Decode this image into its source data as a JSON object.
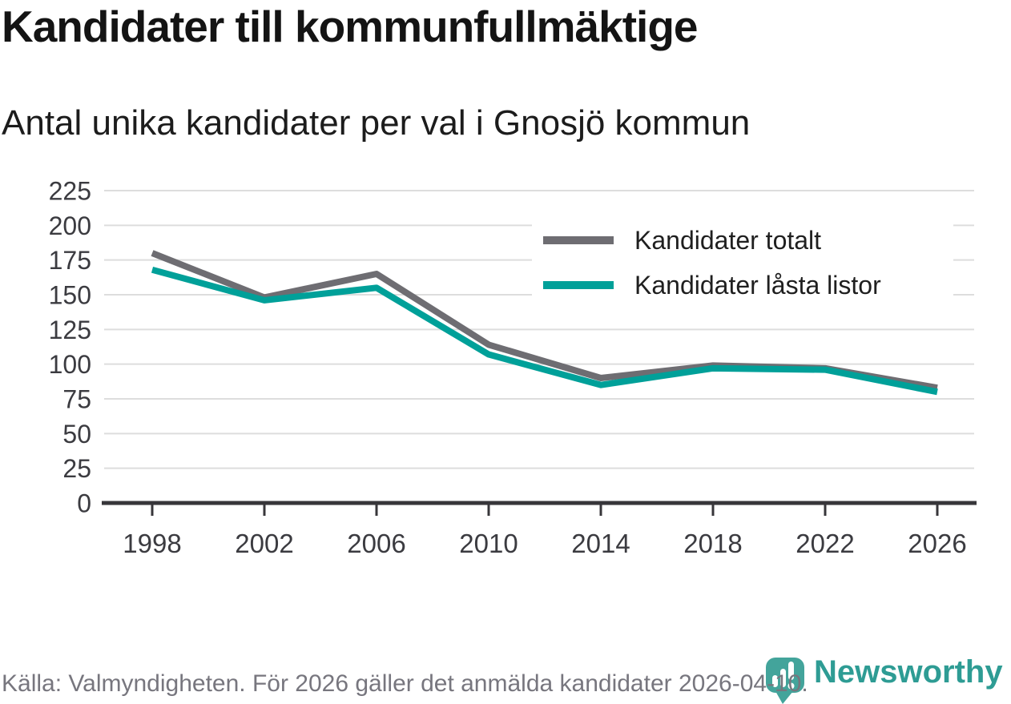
{
  "header": {
    "title": "Kandidater till kommunfullmäktige",
    "subtitle": "Antal unika kandidater per val i Gnosjö kommun"
  },
  "chart_data": {
    "type": "line",
    "x": [
      1998,
      2002,
      2006,
      2010,
      2014,
      2018,
      2022,
      2026
    ],
    "series": [
      {
        "name": "Kandidater totalt",
        "color": "#6e6d72",
        "values": [
          180,
          148,
          165,
          114,
          90,
          99,
          97,
          83
        ]
      },
      {
        "name": "Kandidater låsta listor",
        "color": "#00a099",
        "values": [
          168,
          146,
          155,
          107,
          85,
          97,
          96,
          80
        ]
      }
    ],
    "ylim": [
      0,
      225
    ],
    "yticks": [
      0,
      25,
      50,
      75,
      100,
      125,
      150,
      175,
      200,
      225
    ],
    "grid": "horizontal",
    "legend_position": "top-right"
  },
  "footer": {
    "source": "Källa: Valmyndigheten. För 2026 gäller det anmälda kandidater 2026-04-10."
  },
  "logo": {
    "brand": "Newsworthy"
  },
  "colors": {
    "accent_teal": "#00a099",
    "line_gray": "#6e6d72",
    "grid": "#dddddd",
    "axis": "#37363a",
    "tick_text": "#3b3b40",
    "text_dark": "#141414",
    "footer_gray": "#77767e",
    "logo_pin": "#43a49b",
    "logo_text": "#2e9c94"
  }
}
